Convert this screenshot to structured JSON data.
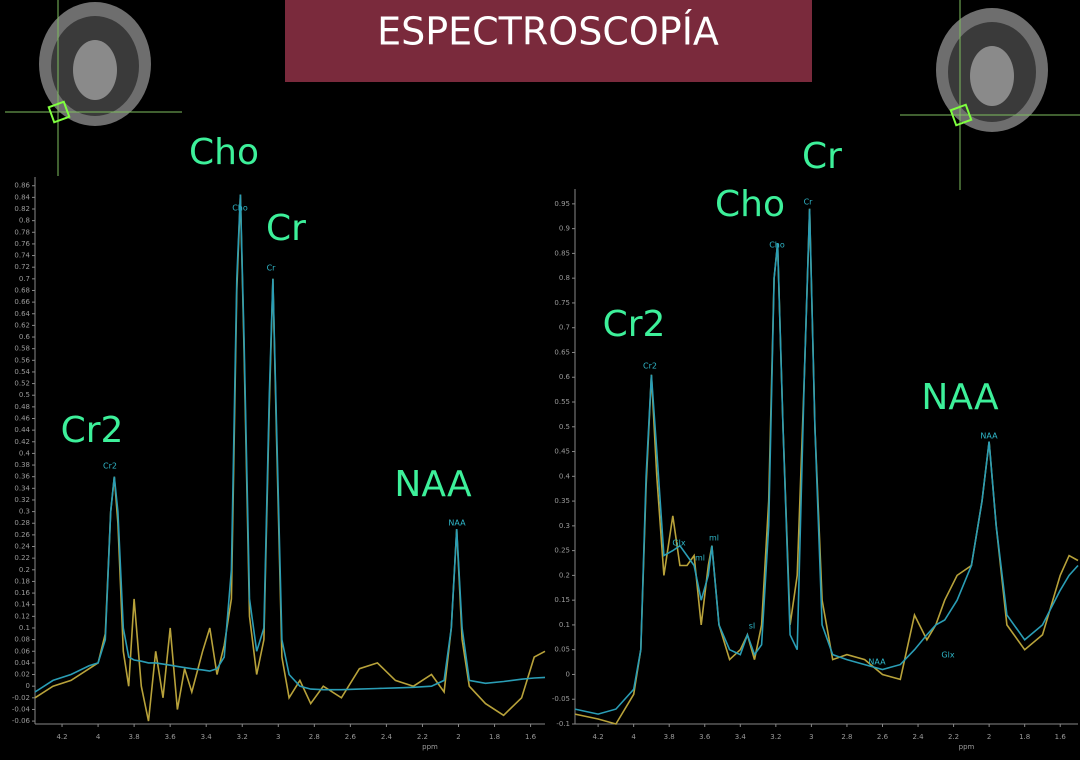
{
  "title": "ESPECTROSCOPÍA",
  "chart_data": [
    {
      "type": "line",
      "xlabel": "ppm",
      "xlim": [
        4.35,
        1.52
      ],
      "ylim": [
        -0.065,
        0.875
      ],
      "xticks": [
        4.2,
        4,
        3.8,
        3.6,
        3.4,
        3.2,
        3,
        2.8,
        2.6,
        2.4,
        2.2,
        2,
        1.8,
        1.6
      ],
      "yticks": [
        0.86,
        0.84,
        0.82,
        0.8,
        0.78,
        0.76,
        0.74,
        0.72,
        0.7,
        0.68,
        0.66,
        0.64,
        0.62,
        0.6,
        0.58,
        0.56,
        0.54,
        0.52,
        0.5,
        0.48,
        0.46,
        0.44,
        0.42,
        0.4,
        0.38,
        0.36,
        0.34,
        0.32,
        0.3,
        0.28,
        0.26,
        0.24,
        0.22,
        0.2,
        0.18,
        0.16,
        0.14,
        0.12,
        0.1,
        0.08,
        0.06,
        0.04,
        0.02,
        0,
        -0.02,
        -0.04,
        -0.06
      ],
      "annotations": [
        "Cho",
        "Cr",
        "Cr2",
        "NAA"
      ],
      "peak_labels": [
        "Cho",
        "Cr",
        "Cr2",
        "NAA"
      ],
      "x": [
        4.35,
        4.25,
        4.15,
        4.05,
        4.0,
        3.96,
        3.93,
        3.91,
        3.89,
        3.86,
        3.83,
        3.8,
        3.76,
        3.72,
        3.68,
        3.64,
        3.6,
        3.56,
        3.52,
        3.48,
        3.42,
        3.38,
        3.34,
        3.3,
        3.26,
        3.23,
        3.21,
        3.19,
        3.16,
        3.12,
        3.08,
        3.05,
        3.03,
        3.01,
        2.98,
        2.94,
        2.88,
        2.82,
        2.75,
        2.65,
        2.55,
        2.45,
        2.35,
        2.25,
        2.15,
        2.08,
        2.04,
        2.01,
        1.98,
        1.94,
        1.85,
        1.75,
        1.65,
        1.58,
        1.52
      ],
      "series": [
        {
          "color": "#b8a23a",
          "values": [
            -0.02,
            0.0,
            0.01,
            0.03,
            0.04,
            0.09,
            0.3,
            0.36,
            0.28,
            0.06,
            0.0,
            0.15,
            0.0,
            -0.06,
            0.06,
            -0.02,
            0.1,
            -0.04,
            0.03,
            -0.01,
            0.06,
            0.1,
            0.02,
            0.07,
            0.15,
            0.68,
            0.845,
            0.58,
            0.12,
            0.02,
            0.08,
            0.48,
            0.7,
            0.43,
            0.05,
            -0.02,
            0.01,
            -0.03,
            0.0,
            -0.02,
            0.03,
            0.04,
            0.01,
            0.0,
            0.02,
            -0.01,
            0.1,
            0.27,
            0.08,
            0.0,
            -0.03,
            -0.05,
            -0.02,
            0.05,
            0.06
          ]
        },
        {
          "color": "#2a9db5",
          "values": [
            -0.01,
            0.01,
            0.02,
            0.035,
            0.04,
            0.08,
            0.3,
            0.36,
            0.3,
            0.1,
            0.05,
            0.045,
            0.043,
            0.04,
            0.04,
            0.038,
            0.036,
            0.034,
            0.032,
            0.03,
            0.028,
            0.026,
            0.03,
            0.05,
            0.2,
            0.7,
            0.845,
            0.6,
            0.15,
            0.06,
            0.1,
            0.5,
            0.7,
            0.45,
            0.08,
            0.02,
            0.0,
            -0.005,
            -0.006,
            -0.006,
            -0.005,
            -0.004,
            -0.003,
            -0.002,
            0.0,
            0.01,
            0.1,
            0.27,
            0.1,
            0.01,
            0.005,
            0.008,
            0.012,
            0.014,
            0.015
          ]
        }
      ]
    },
    {
      "type": "line",
      "xlabel": "ppm",
      "xlim": [
        4.33,
        1.5
      ],
      "ylim": [
        -0.1,
        0.98
      ],
      "xticks": [
        4.2,
        4,
        3.8,
        3.6,
        3.4,
        3.2,
        3,
        2.8,
        2.6,
        2.4,
        2.2,
        2,
        1.8,
        1.6
      ],
      "yticks": [
        0.95,
        0.9,
        0.85,
        0.8,
        0.75,
        0.7,
        0.65,
        0.6,
        0.55,
        0.5,
        0.45,
        0.4,
        0.35,
        0.3,
        0.25,
        0.2,
        0.15,
        0.1,
        0.05,
        0,
        -0.05,
        -0.1
      ],
      "annotations": [
        "Cr",
        "Cho",
        "Cr2",
        "NAA"
      ],
      "peak_labels": [
        "Cr2",
        "Glx",
        "ml",
        "ml",
        "sI",
        "Cho",
        "Cr",
        "NAA",
        "Glx",
        "NAA"
      ],
      "x": [
        4.33,
        4.2,
        4.1,
        4.0,
        3.96,
        3.93,
        3.9,
        3.87,
        3.83,
        3.78,
        3.74,
        3.7,
        3.66,
        3.62,
        3.58,
        3.56,
        3.52,
        3.46,
        3.4,
        3.36,
        3.32,
        3.28,
        3.24,
        3.21,
        3.19,
        3.16,
        3.12,
        3.08,
        3.04,
        3.01,
        2.98,
        2.94,
        2.88,
        2.8,
        2.7,
        2.6,
        2.5,
        2.42,
        2.35,
        2.3,
        2.25,
        2.18,
        2.1,
        2.04,
        2.0,
        1.96,
        1.9,
        1.8,
        1.7,
        1.6,
        1.55,
        1.5
      ],
      "series": [
        {
          "color": "#b8a23a",
          "values": [
            -0.08,
            -0.09,
            -0.1,
            -0.04,
            0.05,
            0.38,
            0.605,
            0.4,
            0.2,
            0.32,
            0.22,
            0.22,
            0.24,
            0.1,
            0.22,
            0.26,
            0.1,
            0.03,
            0.05,
            0.08,
            0.03,
            0.1,
            0.35,
            0.8,
            0.87,
            0.5,
            0.1,
            0.2,
            0.6,
            0.94,
            0.5,
            0.15,
            0.03,
            0.04,
            0.03,
            0.0,
            -0.01,
            0.12,
            0.07,
            0.1,
            0.15,
            0.2,
            0.22,
            0.35,
            0.47,
            0.3,
            0.1,
            0.05,
            0.08,
            0.2,
            0.24,
            0.23
          ]
        },
        {
          "color": "#2a9db5",
          "values": [
            -0.07,
            -0.08,
            -0.07,
            -0.03,
            0.05,
            0.4,
            0.605,
            0.45,
            0.24,
            0.25,
            0.26,
            0.24,
            0.22,
            0.15,
            0.2,
            0.26,
            0.1,
            0.05,
            0.04,
            0.08,
            0.04,
            0.06,
            0.3,
            0.8,
            0.87,
            0.5,
            0.08,
            0.05,
            0.6,
            0.94,
            0.5,
            0.1,
            0.04,
            0.03,
            0.02,
            0.01,
            0.02,
            0.05,
            0.08,
            0.1,
            0.11,
            0.15,
            0.22,
            0.35,
            0.47,
            0.3,
            0.12,
            0.07,
            0.1,
            0.17,
            0.2,
            0.22
          ]
        }
      ]
    }
  ]
}
